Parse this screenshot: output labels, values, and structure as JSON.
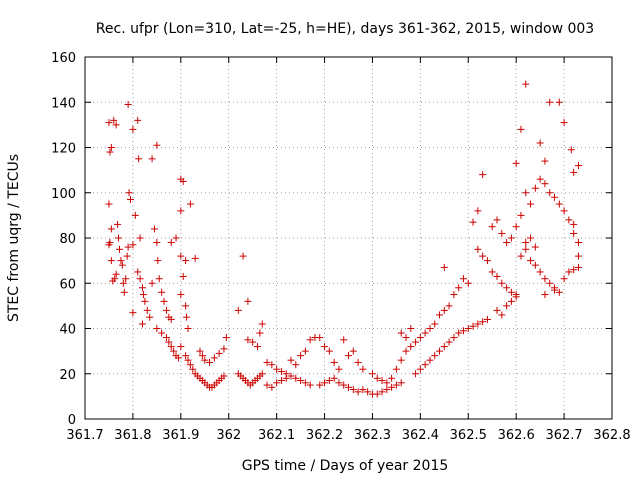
{
  "chart_data": {
    "type": "scatter",
    "title": "Rec. ufpr (Lon=310, Lat=-25, h=HE), days 361-362, 2015, window 003",
    "xlabel": "GPS time / Days of year 2015",
    "ylabel": "STEC from uqrg / TECUs",
    "xlim": [
      361.7,
      362.8
    ],
    "ylim": [
      0,
      160
    ],
    "xticks": [
      361.7,
      361.8,
      361.9,
      362.0,
      362.1,
      362.2,
      362.3,
      362.4,
      362.5,
      362.6,
      362.7,
      362.8
    ],
    "xtick_labels": [
      "361.7",
      "361.8",
      "361.9",
      "362",
      "362.1",
      "362.2",
      "362.3",
      "362.4",
      "362.5",
      "362.6",
      "362.7",
      "362.8"
    ],
    "yticks": [
      0,
      20,
      40,
      60,
      80,
      100,
      120,
      140,
      160
    ],
    "ytick_labels": [
      "0",
      "20",
      "40",
      "60",
      "80",
      "100",
      "120",
      "140",
      "160"
    ],
    "grid": true,
    "marker": "+",
    "color": "#cc0000",
    "series": [
      {
        "points": [
          [
            361.75,
            131
          ],
          [
            361.755,
            120
          ],
          [
            361.752,
            118
          ],
          [
            361.76,
            132
          ],
          [
            361.765,
            130
          ],
          [
            361.75,
            95
          ],
          [
            361.755,
            84
          ],
          [
            361.752,
            78
          ],
          [
            361.75,
            77
          ],
          [
            361.755,
            70
          ],
          [
            361.758,
            61
          ],
          [
            361.762,
            62
          ],
          [
            361.765,
            64
          ],
          [
            361.768,
            86
          ],
          [
            361.77,
            80
          ],
          [
            361.772,
            75
          ],
          [
            361.775,
            70
          ],
          [
            361.778,
            68
          ],
          [
            361.78,
            60
          ],
          [
            361.782,
            56
          ],
          [
            361.785,
            62
          ],
          [
            361.79,
            139
          ],
          [
            361.792,
            100
          ],
          [
            361.795,
            97
          ],
          [
            361.79,
            76
          ],
          [
            361.788,
            72
          ],
          [
            361.8,
            128
          ],
          [
            361.805,
            90
          ],
          [
            361.8,
            77
          ],
          [
            361.81,
            132
          ],
          [
            361.812,
            115
          ],
          [
            361.815,
            80
          ],
          [
            361.81,
            65
          ],
          [
            361.815,
            62
          ],
          [
            361.82,
            58
          ],
          [
            361.822,
            55
          ],
          [
            361.825,
            52
          ],
          [
            361.83,
            48
          ],
          [
            361.835,
            45
          ],
          [
            361.8,
            47
          ],
          [
            361.82,
            42
          ],
          [
            361.84,
            115
          ],
          [
            361.85,
            121
          ],
          [
            361.845,
            84
          ],
          [
            361.85,
            78
          ],
          [
            361.852,
            70
          ],
          [
            361.855,
            62
          ],
          [
            361.84,
            60
          ],
          [
            361.86,
            56
          ],
          [
            361.865,
            52
          ],
          [
            361.87,
            48
          ],
          [
            361.875,
            45
          ],
          [
            361.88,
            44
          ],
          [
            361.85,
            40
          ],
          [
            361.86,
            38
          ],
          [
            361.87,
            36
          ],
          [
            361.875,
            34
          ],
          [
            361.88,
            32
          ],
          [
            361.885,
            30
          ],
          [
            361.89,
            28
          ],
          [
            361.895,
            27
          ],
          [
            361.9,
            106
          ],
          [
            361.905,
            105
          ],
          [
            361.9,
            92
          ],
          [
            361.89,
            80
          ],
          [
            361.88,
            78
          ],
          [
            361.9,
            72
          ],
          [
            361.91,
            70
          ],
          [
            361.905,
            63
          ],
          [
            361.9,
            55
          ],
          [
            361.91,
            50
          ],
          [
            361.912,
            45
          ],
          [
            361.915,
            40
          ],
          [
            361.92,
            95
          ],
          [
            361.93,
            71
          ],
          [
            361.9,
            32
          ],
          [
            361.91,
            28
          ],
          [
            361.915,
            26
          ],
          [
            361.92,
            24
          ],
          [
            361.925,
            22
          ],
          [
            361.93,
            20
          ],
          [
            361.935,
            19
          ],
          [
            361.94,
            18
          ],
          [
            361.945,
            17
          ],
          [
            361.95,
            16
          ],
          [
            361.955,
            15
          ],
          [
            361.96,
            14
          ],
          [
            361.965,
            14
          ],
          [
            361.97,
            15
          ],
          [
            361.975,
            16
          ],
          [
            361.98,
            17
          ],
          [
            361.985,
            18
          ],
          [
            361.99,
            19
          ],
          [
            361.94,
            30
          ],
          [
            361.945,
            28
          ],
          [
            361.95,
            26
          ],
          [
            361.96,
            25
          ],
          [
            361.97,
            27
          ],
          [
            361.98,
            29
          ],
          [
            361.99,
            31
          ],
          [
            361.995,
            36
          ],
          [
            362.02,
            48
          ],
          [
            362.03,
            72
          ],
          [
            362.04,
            52
          ],
          [
            362.02,
            20
          ],
          [
            362.025,
            19
          ],
          [
            362.03,
            18
          ],
          [
            362.035,
            17
          ],
          [
            362.04,
            16
          ],
          [
            362.045,
            15
          ],
          [
            362.05,
            16
          ],
          [
            362.055,
            17
          ],
          [
            362.06,
            18
          ],
          [
            362.065,
            19
          ],
          [
            362.07,
            20
          ],
          [
            362.04,
            35
          ],
          [
            362.05,
            34
          ],
          [
            362.06,
            32
          ],
          [
            362.065,
            38
          ],
          [
            362.07,
            42
          ],
          [
            362.08,
            25
          ],
          [
            362.09,
            24
          ],
          [
            362.1,
            22
          ],
          [
            362.11,
            21
          ],
          [
            362.12,
            20
          ],
          [
            362.13,
            19
          ],
          [
            362.14,
            18
          ],
          [
            362.15,
            17
          ],
          [
            362.16,
            16
          ],
          [
            362.17,
            15
          ],
          [
            362.08,
            15
          ],
          [
            362.09,
            14
          ],
          [
            362.1,
            16
          ],
          [
            362.11,
            17
          ],
          [
            362.12,
            18
          ],
          [
            362.13,
            26
          ],
          [
            362.14,
            24
          ],
          [
            362.15,
            28
          ],
          [
            362.16,
            30
          ],
          [
            362.17,
            35
          ],
          [
            362.18,
            36
          ],
          [
            362.19,
            15
          ],
          [
            362.2,
            16
          ],
          [
            362.21,
            17
          ],
          [
            362.22,
            18
          ],
          [
            362.23,
            16
          ],
          [
            362.24,
            15
          ],
          [
            362.25,
            14
          ],
          [
            362.26,
            13
          ],
          [
            362.27,
            12
          ],
          [
            362.28,
            13
          ],
          [
            362.29,
            12
          ],
          [
            362.3,
            11
          ],
          [
            362.31,
            11
          ],
          [
            362.32,
            12
          ],
          [
            362.33,
            13
          ],
          [
            362.34,
            14
          ],
          [
            362.35,
            15
          ],
          [
            362.36,
            16
          ],
          [
            362.19,
            36
          ],
          [
            362.2,
            32
          ],
          [
            362.21,
            30
          ],
          [
            362.22,
            25
          ],
          [
            362.23,
            22
          ],
          [
            362.24,
            35
          ],
          [
            362.25,
            28
          ],
          [
            362.26,
            30
          ],
          [
            362.27,
            25
          ],
          [
            362.28,
            22
          ],
          [
            362.3,
            20
          ],
          [
            362.31,
            18
          ],
          [
            362.32,
            17
          ],
          [
            362.33,
            16
          ],
          [
            362.34,
            18
          ],
          [
            362.35,
            22
          ],
          [
            362.36,
            26
          ],
          [
            362.37,
            30
          ],
          [
            362.38,
            32
          ],
          [
            362.39,
            34
          ],
          [
            362.4,
            36
          ],
          [
            362.41,
            38
          ],
          [
            362.42,
            40
          ],
          [
            362.43,
            42
          ],
          [
            362.44,
            46
          ],
          [
            362.45,
            48
          ],
          [
            362.36,
            38
          ],
          [
            362.37,
            36
          ],
          [
            362.38,
            40
          ],
          [
            362.39,
            20
          ],
          [
            362.4,
            22
          ],
          [
            362.41,
            24
          ],
          [
            362.42,
            26
          ],
          [
            362.43,
            28
          ],
          [
            362.44,
            30
          ],
          [
            362.45,
            32
          ],
          [
            362.46,
            34
          ],
          [
            362.47,
            36
          ],
          [
            362.48,
            38
          ],
          [
            362.49,
            39
          ],
          [
            362.5,
            40
          ],
          [
            362.51,
            41
          ],
          [
            362.52,
            42
          ],
          [
            362.45,
            67
          ],
          [
            362.46,
            50
          ],
          [
            362.47,
            55
          ],
          [
            362.48,
            58
          ],
          [
            362.49,
            62
          ],
          [
            362.5,
            60
          ],
          [
            362.51,
            87
          ],
          [
            362.52,
            92
          ],
          [
            362.53,
            108
          ],
          [
            362.52,
            75
          ],
          [
            362.53,
            72
          ],
          [
            362.54,
            70
          ],
          [
            362.55,
            65
          ],
          [
            362.56,
            63
          ],
          [
            362.57,
            60
          ],
          [
            362.58,
            58
          ],
          [
            362.59,
            56
          ],
          [
            362.6,
            55
          ],
          [
            362.55,
            85
          ],
          [
            362.56,
            88
          ],
          [
            362.57,
            82
          ],
          [
            362.58,
            78
          ],
          [
            362.59,
            80
          ],
          [
            362.6,
            85
          ],
          [
            362.61,
            90
          ],
          [
            362.62,
            100
          ],
          [
            362.63,
            95
          ],
          [
            362.64,
            102
          ],
          [
            362.65,
            106
          ],
          [
            362.66,
            104
          ],
          [
            362.67,
            100
          ],
          [
            362.68,
            98
          ],
          [
            362.69,
            95
          ],
          [
            362.7,
            92
          ],
          [
            362.71,
            88
          ],
          [
            362.72,
            82
          ],
          [
            362.73,
            78
          ],
          [
            362.6,
            113
          ],
          [
            362.61,
            128
          ],
          [
            362.62,
            148
          ],
          [
            362.65,
            122
          ],
          [
            362.66,
            114
          ],
          [
            362.67,
            140
          ],
          [
            362.69,
            140
          ],
          [
            362.7,
            131
          ],
          [
            362.715,
            119
          ],
          [
            362.72,
            109
          ],
          [
            362.73,
            112
          ],
          [
            362.62,
            75
          ],
          [
            362.63,
            70
          ],
          [
            362.64,
            68
          ],
          [
            362.65,
            65
          ],
          [
            362.66,
            62
          ],
          [
            362.67,
            60
          ],
          [
            362.68,
            58
          ],
          [
            362.69,
            56
          ],
          [
            362.7,
            62
          ],
          [
            362.71,
            65
          ],
          [
            362.72,
            66
          ],
          [
            362.73,
            67
          ],
          [
            362.56,
            48
          ],
          [
            362.57,
            46
          ],
          [
            362.58,
            50
          ],
          [
            362.59,
            52
          ],
          [
            362.6,
            54
          ],
          [
            362.54,
            44
          ],
          [
            362.53,
            43
          ],
          [
            362.61,
            72
          ],
          [
            362.62,
            78
          ],
          [
            362.63,
            80
          ],
          [
            362.64,
            76
          ],
          [
            362.66,
            55
          ],
          [
            362.68,
            57
          ],
          [
            362.72,
            86
          ],
          [
            362.73,
            72
          ]
        ]
      }
    ]
  }
}
